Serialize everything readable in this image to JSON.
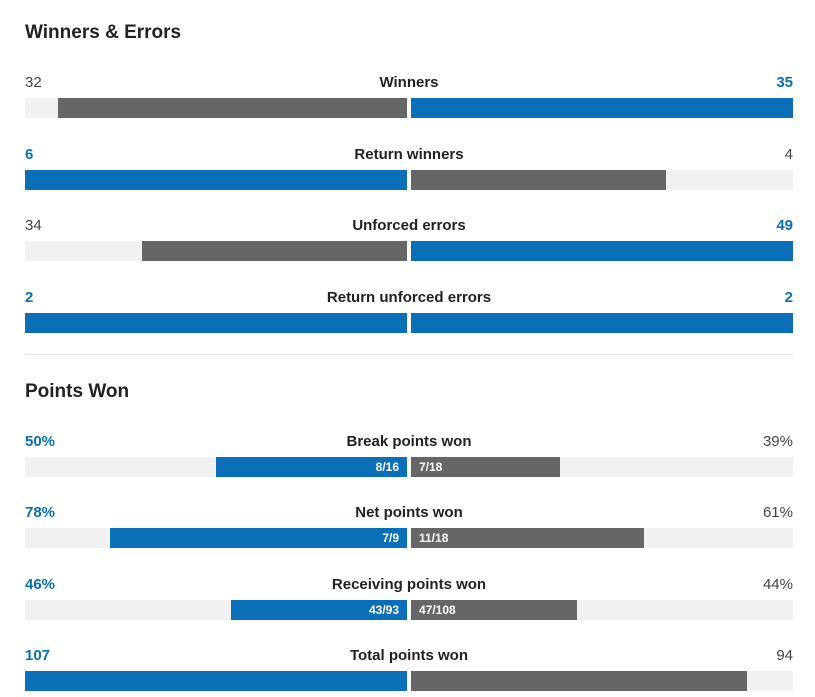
{
  "sections": [
    {
      "title": "Winners & Errors",
      "stats": [
        {
          "label": "Winners",
          "left": "32",
          "right": "35",
          "left_fill": 0.914,
          "right_fill": 1.0,
          "left_ratio": "",
          "right_ratio": ""
        },
        {
          "label": "Return winners",
          "left": "6",
          "right": "4",
          "left_fill": 1.0,
          "right_fill": 0.667,
          "left_ratio": "",
          "right_ratio": ""
        },
        {
          "label": "Unforced errors",
          "left": "34",
          "right": "49",
          "left_fill": 0.694,
          "right_fill": 1.0,
          "left_ratio": "",
          "right_ratio": ""
        },
        {
          "label": "Return unforced errors",
          "left": "2",
          "right": "2",
          "left_fill": 1.0,
          "right_fill": 1.0,
          "left_ratio": "",
          "right_ratio": ""
        }
      ]
    },
    {
      "title": "Points Won",
      "stats": [
        {
          "label": "Break points won",
          "left": "50%",
          "right": "39%",
          "left_fill": 0.5,
          "right_fill": 0.389,
          "left_ratio": "8/16",
          "right_ratio": "7/18"
        },
        {
          "label": "Net points won",
          "left": "78%",
          "right": "61%",
          "left_fill": 0.778,
          "right_fill": 0.611,
          "left_ratio": "7/9",
          "right_ratio": "11/18"
        },
        {
          "label": "Receiving points won",
          "left": "46%",
          "right": "44%",
          "left_fill": 0.462,
          "right_fill": 0.435,
          "left_ratio": "43/93",
          "right_ratio": "47/108"
        },
        {
          "label": "Total points won",
          "left": "107",
          "right": "94",
          "left_fill": 1.0,
          "right_fill": 0.879,
          "left_ratio": "",
          "right_ratio": ""
        }
      ]
    }
  ],
  "colors": {
    "leader": "#0a6fb6",
    "trailer": "#666666",
    "track": "#f1f1f1"
  }
}
